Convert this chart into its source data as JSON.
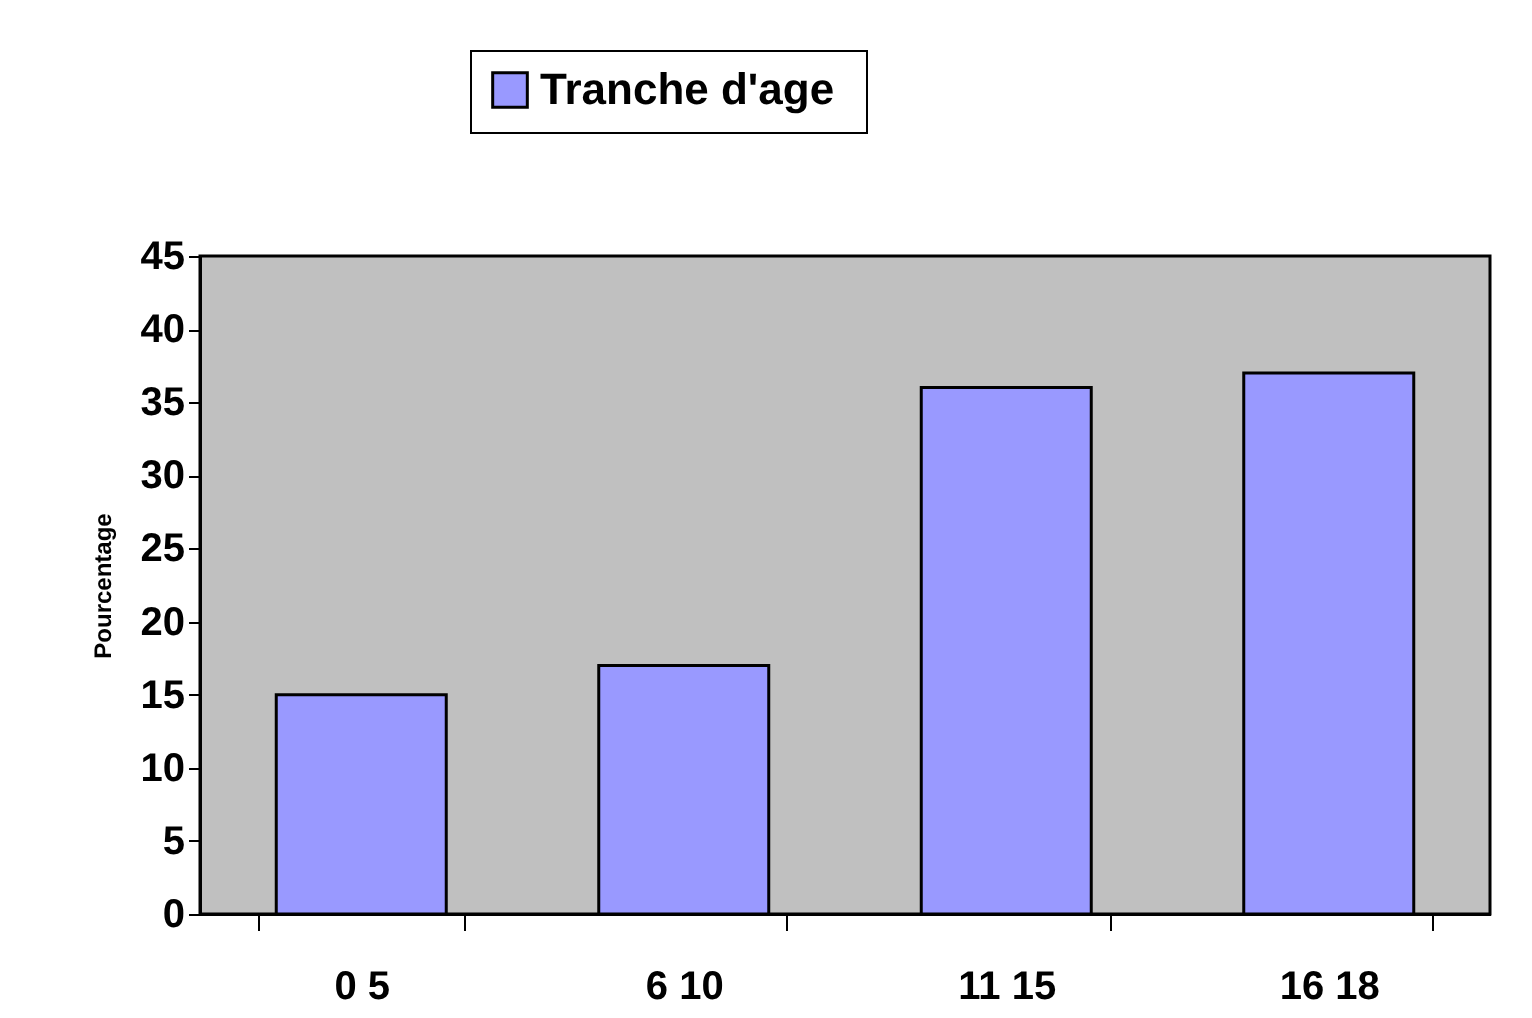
{
  "chart_data": {
    "type": "bar",
    "ylabel": "Pourcentage",
    "categories": [
      "0 5",
      "6 10",
      "11 15",
      "16 18"
    ],
    "series": [
      {
        "name": "Tranche  d'age",
        "color": "#9999ff",
        "values": [
          15,
          17,
          36,
          37
        ]
      }
    ],
    "ylim": [
      0,
      45
    ],
    "yticks": [
      0,
      5,
      10,
      15,
      20,
      25,
      30,
      35,
      40,
      45
    ],
    "grid": false,
    "legend": "top"
  }
}
